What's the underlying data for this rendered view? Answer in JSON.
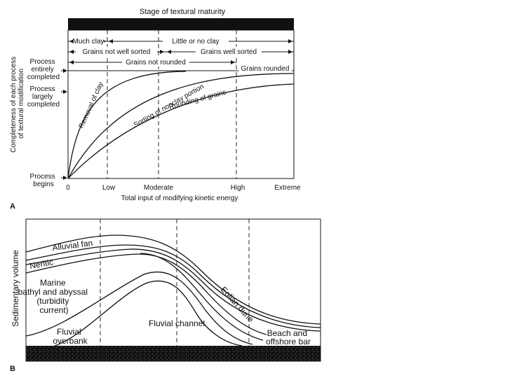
{
  "panel_a": {
    "label": "A",
    "title": "Stage of textural maturity",
    "y_axis_label_line1": "Completeness of each process",
    "y_axis_label_line2": "of textural modification",
    "x_axis_label": "Total input of modifying kinetic energy",
    "x_ticks": [
      "0",
      "Low",
      "Moderate",
      "High",
      "Extreme"
    ],
    "y_levels": [
      {
        "lines": [
          "Process",
          "entirely",
          "completed"
        ]
      },
      {
        "lines": [
          "Process",
          "largely",
          "completed"
        ]
      },
      {
        "lines": [
          "Process",
          "begins"
        ]
      }
    ],
    "range_labels": {
      "much_clay": "Much clay",
      "little_clay": "Little or no clay",
      "not_sorted": "Grains not well sorted",
      "well_sorted": "Grains well sorted",
      "not_rounded": "Grains not rounded",
      "rounded": "Grains rounded"
    },
    "curves": {
      "clay": "Removal of clay",
      "sorting": "Sorting of nonclay portion",
      "rounding": "Rounding of grains"
    }
  },
  "panel_b": {
    "label": "B",
    "y_axis_label": "Sedimentary volume",
    "regions": {
      "alluvial_fan": "Alluvial fan",
      "neritic": "Neritic",
      "marine": [
        "Marine",
        "bathyl and abyssal",
        "(turbidity",
        "current)"
      ],
      "fluvial_overbank": [
        "Fluvial",
        "overbank"
      ],
      "fluvial_channel": "Fluvial channel",
      "eolian_dune": "Eolian dune",
      "beach": [
        "Beach and",
        "offshore bar"
      ]
    }
  },
  "colors": {
    "ink": "#111111",
    "background": "#ffffff"
  }
}
